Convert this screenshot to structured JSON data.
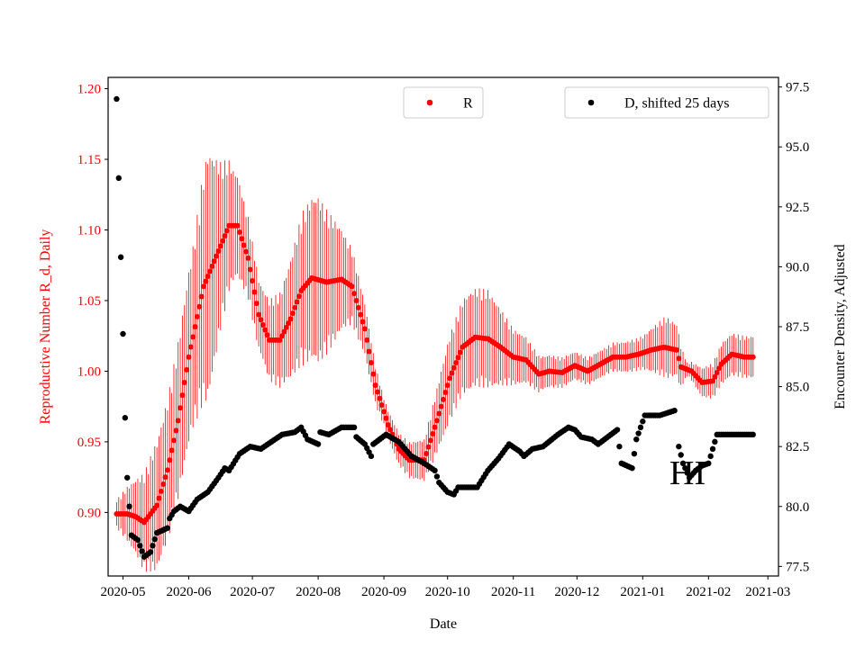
{
  "chart_data": {
    "type": "scatter",
    "xlabel": "Date",
    "ylabel_left": "Reproductive Number R_d, Daily",
    "ylabel_right": "Encounter Density, Adjusted",
    "annotation": "HI",
    "x_domain": [
      "2020-04-24",
      "2021-03-06"
    ],
    "x_ticks": [
      "2020-05",
      "2020-06",
      "2020-07",
      "2020-08",
      "2020-09",
      "2020-10",
      "2020-11",
      "2020-12",
      "2021-01",
      "2021-02",
      "2021-03"
    ],
    "y_left": {
      "range": [
        0.855,
        1.208
      ],
      "ticks": [
        "0.90",
        "0.95",
        "1.00",
        "1.05",
        "1.10",
        "1.15",
        "1.20"
      ]
    },
    "y_right": {
      "range": [
        77.1,
        97.9
      ],
      "ticks": [
        "77.5",
        "80.0",
        "82.5",
        "85.0",
        "87.5",
        "90.0",
        "92.5",
        "95.0",
        "97.5"
      ]
    },
    "colors": {
      "R": "#ff0000",
      "D": "#000000",
      "left_axis": "#ff0000",
      "right_axis": "#000000"
    },
    "series": [
      {
        "name": "R",
        "axis": "left",
        "key_dates": [
          "2020-04-28",
          "2020-05-03",
          "2020-05-07",
          "2020-05-11",
          "2020-05-17",
          "2020-05-22",
          "2020-05-27",
          "2020-06-01",
          "2020-06-08",
          "2020-06-15",
          "2020-06-20",
          "2020-06-24",
          "2020-06-29",
          "2020-07-04",
          "2020-07-09",
          "2020-07-14",
          "2020-07-19",
          "2020-07-24",
          "2020-07-29",
          "2020-08-05",
          "2020-08-12",
          "2020-08-17",
          "2020-08-23",
          "2020-08-28",
          "2020-09-03",
          "2020-09-08",
          "2020-09-13",
          "2020-09-20",
          "2020-09-26",
          "2020-10-02",
          "2020-10-08",
          "2020-10-14",
          "2020-10-20",
          "2020-10-26",
          "2020-11-01",
          "2020-11-07",
          "2020-11-13",
          "2020-11-18",
          "2020-11-24",
          "2020-11-30",
          "2020-12-06",
          "2020-12-12",
          "2020-12-18",
          "2020-12-24",
          "2020-12-30",
          "2021-01-05",
          "2021-01-11",
          "2021-01-17",
          "2021-01-19",
          "2021-01-24",
          "2021-01-29",
          "2021-02-03",
          "2021-02-07",
          "2021-02-12",
          "2021-02-18",
          "2021-02-22"
        ],
        "key_values": [
          0.899,
          0.899,
          0.897,
          0.893,
          0.905,
          0.93,
          0.965,
          1.01,
          1.06,
          1.085,
          1.103,
          1.103,
          1.08,
          1.04,
          1.022,
          1.022,
          1.037,
          1.057,
          1.066,
          1.063,
          1.065,
          1.06,
          1.03,
          0.99,
          0.962,
          0.945,
          0.937,
          0.937,
          0.965,
          0.995,
          1.017,
          1.024,
          1.023,
          1.017,
          1.01,
          1.008,
          0.998,
          1.0,
          0.999,
          1.004,
          1.0,
          1.005,
          1.01,
          1.01,
          1.012,
          1.015,
          1.017,
          1.015,
          1.003,
          1.0,
          0.992,
          0.993,
          1.005,
          1.012,
          1.01,
          1.01
        ],
        "err_key_dates": [
          "2020-04-28",
          "2020-05-06",
          "2020-05-16",
          "2020-05-26",
          "2020-06-03",
          "2020-06-10",
          "2020-06-16",
          "2020-06-22",
          "2020-06-28",
          "2020-07-05",
          "2020-07-15",
          "2020-07-25",
          "2020-08-01",
          "2020-08-08",
          "2020-08-15",
          "2020-08-22",
          "2020-09-01",
          "2020-09-10",
          "2020-09-20",
          "2020-10-01",
          "2020-10-10",
          "2020-10-20",
          "2020-11-01",
          "2020-11-15",
          "2020-12-01",
          "2020-12-15",
          "2021-01-01",
          "2021-01-12",
          "2021-01-18",
          "2021-01-22",
          "2021-01-28",
          "2021-02-08",
          "2021-02-22"
        ],
        "err_key_half_width": [
          0.01,
          0.025,
          0.045,
          0.055,
          0.065,
          0.09,
          0.06,
          0.04,
          0.03,
          0.025,
          0.035,
          0.055,
          0.06,
          0.045,
          0.03,
          0.02,
          0.01,
          0.012,
          0.015,
          0.03,
          0.035,
          0.035,
          0.02,
          0.012,
          0.01,
          0.01,
          0.012,
          0.022,
          0.018,
          0.005,
          0.01,
          0.015,
          0.015
        ]
      },
      {
        "name": "D, shifted 25 days",
        "axis": "right",
        "key_dates": [
          "2020-04-28",
          "2020-04-29",
          "2020-04-30",
          "2020-05-01",
          "2020-05-02",
          "2020-05-03",
          "2020-05-05",
          "2020-05-08",
          "2020-05-11",
          "2020-05-14",
          "2020-05-17",
          "2020-05-22",
          "2020-05-23",
          "2020-05-25",
          "2020-05-28",
          "2020-06-01",
          "2020-06-05",
          "2020-06-10",
          "2020-06-15",
          "2020-06-18",
          "2020-06-20",
          "2020-06-25",
          "2020-06-30",
          "2020-07-05",
          "2020-07-10",
          "2020-07-15",
          "2020-07-21",
          "2020-07-24",
          "2020-07-27",
          "2020-08-01",
          "2020-08-02",
          "2020-08-06",
          "2020-08-12",
          "2020-08-18",
          "2020-08-19",
          "2020-08-23",
          "2020-08-26",
          "2020-08-27",
          "2020-09-02",
          "2020-09-08",
          "2020-09-14",
          "2020-09-20",
          "2020-09-25",
          "2020-09-27",
          "2020-10-01",
          "2020-10-04",
          "2020-10-06",
          "2020-10-10",
          "2020-10-15",
          "2020-10-20",
          "2020-10-25",
          "2020-10-30",
          "2020-11-04",
          "2020-11-06",
          "2020-11-10",
          "2020-11-15",
          "2020-11-22",
          "2020-11-27",
          "2020-11-30",
          "2020-12-03",
          "2020-12-08",
          "2020-12-11",
          "2020-12-14",
          "2020-12-17",
          "2020-12-20",
          "2020-12-22",
          "2020-12-27",
          "2020-12-29",
          "2021-01-02",
          "2021-01-09",
          "2021-01-16",
          "2021-01-18",
          "2021-01-20",
          "2021-01-23",
          "2021-01-26",
          "2021-01-29",
          "2021-02-01",
          "2021-02-05",
          "2021-02-12",
          "2021-02-22"
        ],
        "key_values": [
          97.0,
          93.7,
          90.4,
          87.2,
          83.7,
          81.2,
          78.8,
          78.6,
          77.9,
          78.1,
          78.9,
          79.1,
          79.5,
          79.8,
          80.0,
          79.8,
          80.3,
          80.6,
          81.2,
          81.6,
          81.5,
          82.2,
          82.5,
          82.4,
          82.7,
          83.0,
          83.1,
          83.3,
          82.8,
          82.6,
          83.1,
          83.0,
          83.3,
          83.3,
          82.9,
          82.6,
          82.1,
          82.6,
          83.0,
          82.7,
          82.1,
          81.8,
          81.5,
          81.0,
          80.6,
          80.5,
          80.8,
          80.8,
          80.8,
          81.5,
          82.0,
          82.6,
          82.3,
          82.1,
          82.4,
          82.5,
          83.0,
          83.3,
          83.2,
          82.9,
          82.8,
          82.6,
          82.8,
          83.0,
          83.2,
          81.8,
          81.6,
          82.8,
          83.8,
          83.8,
          84.0,
          82.5,
          81.8,
          81.2,
          81.5,
          81.7,
          81.8,
          83.0,
          83.0,
          83.0
        ],
        "key_gaps": [
          "2021-01-16"
        ]
      }
    ]
  }
}
